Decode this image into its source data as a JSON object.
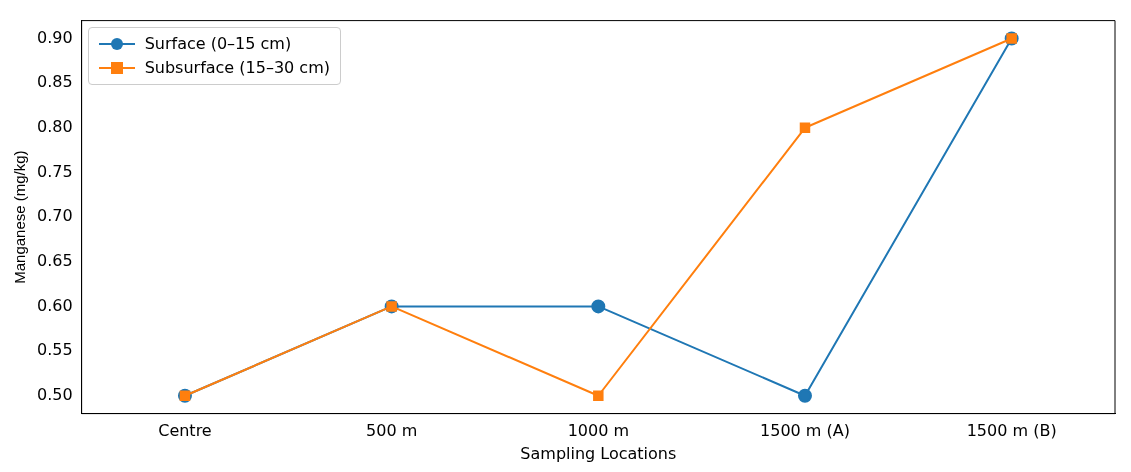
{
  "chart_data": {
    "type": "line",
    "xlabel": "Sampling Locations",
    "ylabel": "Manganese (mg/kg)",
    "categories": [
      "Centre",
      "500 m",
      "1000 m",
      "1500 m (A)",
      "1500 m (B)"
    ],
    "series": [
      {
        "name": "Surface (0–15 cm)",
        "color": "#1f77b4",
        "marker": "circle",
        "values": [
          0.5,
          0.6,
          0.6,
          0.5,
          0.9
        ]
      },
      {
        "name": "Subsurface (15–30 cm)",
        "color": "#ff7f0e",
        "marker": "square",
        "values": [
          0.5,
          0.6,
          0.5,
          0.8,
          0.9
        ]
      }
    ],
    "ylim": [
      0.48,
      0.92
    ],
    "yticks": [
      {
        "value": 0.5,
        "label": "0.50"
      },
      {
        "value": 0.55,
        "label": "0.55"
      },
      {
        "value": 0.6,
        "label": "0.60"
      },
      {
        "value": 0.65,
        "label": "0.65"
      },
      {
        "value": 0.7,
        "label": "0.70"
      },
      {
        "value": 0.75,
        "label": "0.75"
      },
      {
        "value": 0.8,
        "label": "0.80"
      },
      {
        "value": 0.85,
        "label": "0.85"
      },
      {
        "value": 0.9,
        "label": "0.90"
      }
    ],
    "grid": false,
    "legend": "top left",
    "line_style": "solid"
  }
}
